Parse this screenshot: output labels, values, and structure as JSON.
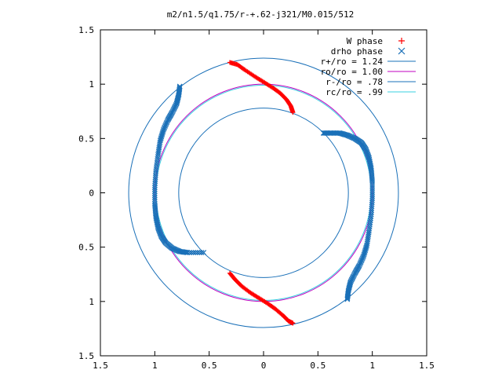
{
  "chart_data": {
    "type": "scatter",
    "title": "m2/n1.5/q1.75/r-+.62-j321/M0.015/512",
    "xlabel": "",
    "ylabel": "",
    "xlim": [
      -1.5,
      1.5
    ],
    "ylim": [
      -1.5,
      1.5
    ],
    "grid": false,
    "legend_position": "top-right",
    "x_ticks": [
      {
        "value": -1.5,
        "label": "1.5"
      },
      {
        "value": -1.0,
        "label": "1"
      },
      {
        "value": -0.5,
        "label": "0.5"
      },
      {
        "value": 0,
        "label": "0"
      },
      {
        "value": 0.5,
        "label": "0.5"
      },
      {
        "value": 1.0,
        "label": "1"
      },
      {
        "value": 1.5,
        "label": "1.5"
      }
    ],
    "y_ticks": [
      {
        "value": 1.5,
        "label": "1.5"
      },
      {
        "value": 1.0,
        "label": "1"
      },
      {
        "value": 0.5,
        "label": "0.5"
      },
      {
        "value": 0,
        "label": "0"
      },
      {
        "value": -0.5,
        "label": "0.5"
      },
      {
        "value": -1.0,
        "label": "1"
      },
      {
        "value": -1.5,
        "label": "1.5"
      }
    ],
    "circles": [
      {
        "name": "r+/ro = 1.24",
        "radius": 1.24,
        "color": "#1a70b8"
      },
      {
        "name": "ro/ro = 1.00",
        "radius": 1.0,
        "color": "#c000c0"
      },
      {
        "name": "r-/ro = .78",
        "radius": 0.78,
        "color": "#1a70b8"
      },
      {
        "name": "rc/ro = .99",
        "radius": 0.99,
        "color": "#3ad0e0"
      }
    ],
    "series": [
      {
        "name": "W phase",
        "marker": "+",
        "color": "#ff0000",
        "segments": [
          [
            [
              -0.31,
              1.2
            ],
            [
              -0.24,
              1.18
            ],
            [
              -0.17,
              1.13
            ],
            [
              -0.08,
              1.07
            ],
            [
              0.0,
              1.02
            ],
            [
              0.08,
              0.97
            ],
            [
              0.15,
              0.92
            ],
            [
              0.21,
              0.86
            ],
            [
              0.25,
              0.8
            ],
            [
              0.27,
              0.74
            ]
          ],
          [
            [
              -0.31,
              -0.74
            ],
            [
              -0.26,
              -0.8
            ],
            [
              -0.2,
              -0.86
            ],
            [
              -0.12,
              -0.92
            ],
            [
              -0.04,
              -0.97
            ],
            [
              0.04,
              -1.02
            ],
            [
              0.11,
              -1.07
            ],
            [
              0.18,
              -1.13
            ],
            [
              0.23,
              -1.18
            ],
            [
              0.27,
              -1.2
            ]
          ]
        ]
      },
      {
        "name": "drho phase",
        "marker": "x",
        "color": "#1a70b8",
        "segments": [
          [
            [
              -0.77,
              0.98
            ],
            [
              -0.78,
              0.9
            ],
            [
              -0.8,
              0.82
            ],
            [
              -0.84,
              0.74
            ],
            [
              -0.88,
              0.67
            ],
            [
              -0.92,
              0.58
            ],
            [
              -0.95,
              0.48
            ],
            [
              -0.97,
              0.35
            ],
            [
              -0.99,
              0.2
            ],
            [
              -1.0,
              0.05
            ],
            [
              -1.0,
              -0.1
            ],
            [
              -0.99,
              -0.22
            ],
            [
              -0.97,
              -0.32
            ],
            [
              -0.94,
              -0.4
            ],
            [
              -0.9,
              -0.46
            ],
            [
              -0.84,
              -0.51
            ],
            [
              -0.77,
              -0.54
            ],
            [
              -0.7,
              -0.55
            ],
            [
              -0.55,
              -0.55
            ]
          ],
          [
            [
              0.55,
              0.55
            ],
            [
              0.62,
              0.55
            ],
            [
              0.7,
              0.55
            ],
            [
              0.77,
              0.53
            ],
            [
              0.84,
              0.5
            ],
            [
              0.9,
              0.46
            ],
            [
              0.94,
              0.4
            ],
            [
              0.97,
              0.32
            ],
            [
              0.99,
              0.22
            ],
            [
              1.0,
              0.1
            ],
            [
              1.0,
              -0.05
            ],
            [
              0.99,
              -0.2
            ],
            [
              0.97,
              -0.35
            ],
            [
              0.95,
              -0.48
            ],
            [
              0.92,
              -0.58
            ],
            [
              0.88,
              -0.67
            ],
            [
              0.84,
              -0.74
            ],
            [
              0.8,
              -0.82
            ],
            [
              0.78,
              -0.9
            ],
            [
              0.77,
              -0.98
            ]
          ]
        ]
      }
    ]
  }
}
